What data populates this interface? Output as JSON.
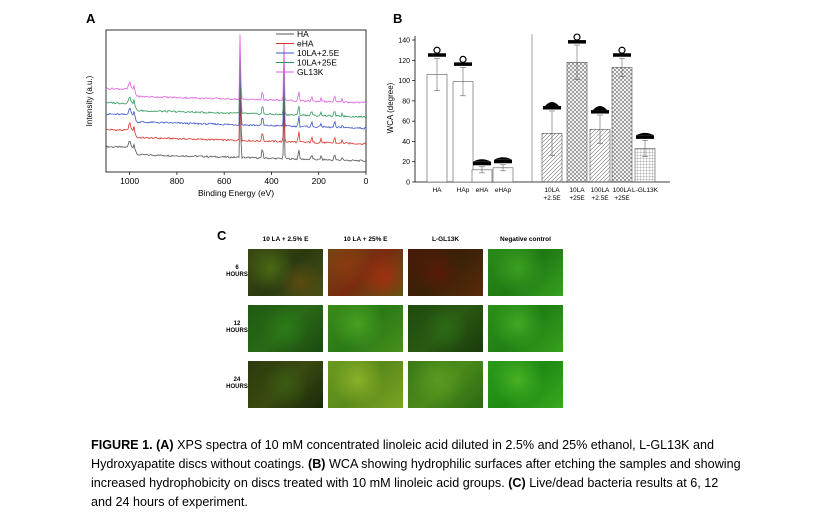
{
  "panels": {
    "a": "A",
    "b": "B",
    "c": "C"
  },
  "chart_data": [
    {
      "type": "line",
      "panel": "A",
      "xlabel": "Binding Energy (eV)",
      "ylabel": "Intensity (a.u.)",
      "xlim": [
        1100,
        0
      ],
      "x_reversed": true,
      "xticks": [
        1000,
        800,
        600,
        400,
        200,
        0
      ],
      "legend_position": "top-right",
      "series": [
        {
          "name": "HA",
          "color": "#555555",
          "offset": 0.05
        },
        {
          "name": "eHA",
          "color": "#d9342b",
          "offset": 0.17
        },
        {
          "name": "10LA+2.5E",
          "color": "#3a54c8",
          "offset": 0.28
        },
        {
          "name": "10LA+25E",
          "color": "#2e9a5a",
          "offset": 0.36
        },
        {
          "name": "GL13K",
          "color": "#e060e0",
          "offset": 0.46
        }
      ],
      "peaks_eV": [
        1000,
        978,
        532,
        438,
        347,
        285,
        230,
        190,
        133,
        100
      ]
    },
    {
      "type": "bar",
      "panel": "B",
      "ylabel": "WCA (degree)",
      "ylim": [
        0,
        140
      ],
      "yticks": [
        0,
        20,
        40,
        60,
        80,
        100,
        120,
        140
      ],
      "categories": [
        "HA",
        "HAp",
        "eHA",
        "eHAp",
        "10LA +2.5E",
        "10LA +25E",
        "100LA +2.5E",
        "100LA +25E",
        "L-GL13K"
      ],
      "values": [
        106,
        99,
        12,
        14,
        48,
        118,
        52,
        113,
        33
      ],
      "errors": [
        16,
        14,
        3,
        3,
        22,
        17,
        14,
        9,
        8
      ],
      "patterns": [
        "none",
        "none",
        "none",
        "none",
        "diag",
        "cross",
        "diag",
        "cross",
        "grid"
      ]
    }
  ],
  "panel_c": {
    "columns": [
      "10 LA + 2.5% E",
      "10 LA + 25% E",
      "L-GL13K",
      "Negative control"
    ],
    "rows": [
      {
        "line1": "6",
        "line2": "HOURS"
      },
      {
        "line1": "12",
        "line2": "HOURS"
      },
      {
        "line1": "24",
        "line2": "HOURS"
      }
    ]
  },
  "caption": {
    "label": "FIGURE 1.",
    "a_tag": "(A)",
    "a_text": " XPS spectra of 10 mM concentrated linoleic acid diluted in 2.5% and 25% ethanol, L-GL13K and Hydroxyapatite discs without coatings. ",
    "b_tag": "(B)",
    "b_text": " WCA showing hydrophilic surfaces after etching the samples and showing increased hydrophobicity on discs treated with 10 mM linoleic acid groups. ",
    "c_tag": "(C)",
    "c_text": " Live/dead bacteria results at 6, 12 and 24 hours of experiment."
  }
}
